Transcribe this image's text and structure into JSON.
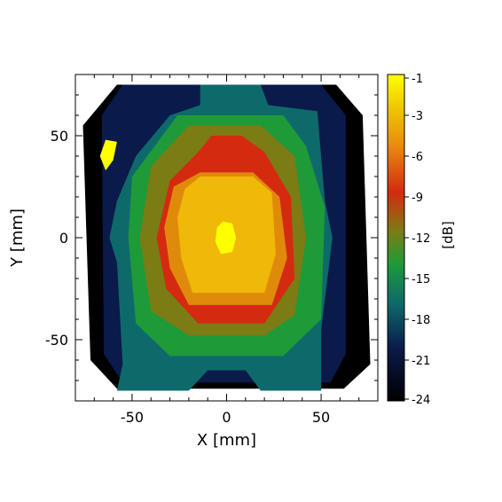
{
  "chart_data": {
    "type": "heatmap",
    "subtype": "filled-contour",
    "xlabel": "X [mm]",
    "ylabel": "Y [mm]",
    "xlim": [
      -80,
      80
    ],
    "ylim": [
      -80,
      80
    ],
    "x_ticks": [
      -50,
      0,
      50
    ],
    "y_ticks": [
      -50,
      0,
      50
    ],
    "colorbar": {
      "label": "[dB]",
      "range": [
        -24,
        0
      ],
      "ticks": [
        -1,
        -3,
        -6,
        -9,
        -12,
        -15,
        -18,
        -21,
        -24
      ],
      "levels": [
        {
          "from": -24,
          "to": -21,
          "color": "#000000"
        },
        {
          "from": -21,
          "to": -18,
          "color": "#0a1a4a"
        },
        {
          "from": -18,
          "to": -15,
          "color": "#0e6a6a"
        },
        {
          "from": -15,
          "to": -12,
          "color": "#1e9a38"
        },
        {
          "from": -12,
          "to": -9,
          "color": "#7c7c14"
        },
        {
          "from": -9,
          "to": -6,
          "color": "#d42a10"
        },
        {
          "from": -6,
          "to": -3,
          "color": "#e08a0c"
        },
        {
          "from": -3,
          "to": -1,
          "color": "#f0b808"
        },
        {
          "from": -1,
          "to": 0,
          "color": "#ffff00"
        }
      ]
    },
    "regions": [
      {
        "level": -22,
        "points": [
          [
            -58,
            75
          ],
          [
            58,
            75
          ],
          [
            72,
            60
          ],
          [
            76,
            -62
          ],
          [
            62,
            -74
          ],
          [
            -58,
            -74
          ],
          [
            -72,
            -60
          ],
          [
            -76,
            55
          ]
        ]
      },
      {
        "level": -19,
        "points": [
          [
            -55,
            75
          ],
          [
            50,
            75
          ],
          [
            63,
            60
          ],
          [
            63,
            -57
          ],
          [
            55,
            -71
          ],
          [
            -55,
            -71
          ],
          [
            -65,
            -57
          ],
          [
            -66,
            60
          ]
        ]
      },
      {
        "level": -16,
        "points": [
          [
            -14,
            75
          ],
          [
            18,
            75
          ],
          [
            22,
            65
          ],
          [
            48,
            62
          ],
          [
            52,
            18
          ],
          [
            56,
            0
          ],
          [
            50,
            -45
          ],
          [
            50,
            -75
          ],
          [
            18,
            -75
          ],
          [
            10,
            -65
          ],
          [
            -10,
            -65
          ],
          [
            -20,
            -75
          ],
          [
            -58,
            -75
          ],
          [
            -55,
            -62
          ],
          [
            -58,
            -12
          ],
          [
            -62,
            0
          ],
          [
            -58,
            18
          ],
          [
            -48,
            40
          ],
          [
            -30,
            60
          ],
          [
            -14,
            65
          ]
        ]
      },
      {
        "level": -13,
        "points": [
          [
            -26,
            60
          ],
          [
            30,
            60
          ],
          [
            42,
            45
          ],
          [
            52,
            15
          ],
          [
            50,
            -40
          ],
          [
            30,
            -58
          ],
          [
            -30,
            -58
          ],
          [
            -48,
            -42
          ],
          [
            -52,
            0
          ],
          [
            -50,
            30
          ]
        ]
      },
      {
        "level": -10,
        "points": [
          [
            -20,
            55
          ],
          [
            18,
            55
          ],
          [
            36,
            40
          ],
          [
            42,
            0
          ],
          [
            36,
            -38
          ],
          [
            20,
            -48
          ],
          [
            -20,
            -48
          ],
          [
            -40,
            -36
          ],
          [
            -46,
            0
          ],
          [
            -40,
            35
          ]
        ]
      },
      {
        "level": -7,
        "points": [
          [
            -8,
            50
          ],
          [
            8,
            50
          ],
          [
            20,
            42
          ],
          [
            34,
            20
          ],
          [
            36,
            -20
          ],
          [
            20,
            -42
          ],
          [
            -15,
            -42
          ],
          [
            -32,
            -25
          ],
          [
            -37,
            0
          ],
          [
            -30,
            28
          ],
          [
            -15,
            42
          ]
        ]
      },
      {
        "level": -4,
        "points": [
          [
            -14,
            32
          ],
          [
            14,
            32
          ],
          [
            28,
            20
          ],
          [
            32,
            -10
          ],
          [
            24,
            -33
          ],
          [
            -20,
            -33
          ],
          [
            -30,
            -15
          ],
          [
            -33,
            5
          ],
          [
            -28,
            25
          ]
        ]
      },
      {
        "level": -2,
        "points": [
          [
            -14,
            30
          ],
          [
            14,
            30
          ],
          [
            24,
            22
          ],
          [
            26,
            -8
          ],
          [
            20,
            -27
          ],
          [
            -18,
            -27
          ],
          [
            -24,
            -10
          ],
          [
            -26,
            10
          ],
          [
            -22,
            24
          ]
        ]
      },
      {
        "level": -1,
        "points": [
          [
            -2,
            8
          ],
          [
            3,
            7
          ],
          [
            5,
            0
          ],
          [
            3,
            -7
          ],
          [
            -3,
            -8
          ],
          [
            -6,
            -2
          ],
          [
            -5,
            5
          ]
        ]
      },
      {
        "level": -1,
        "points": [
          [
            -64,
            48
          ],
          [
            -58,
            47
          ],
          [
            -60,
            38
          ],
          [
            -64,
            33
          ],
          [
            -67,
            40
          ]
        ]
      }
    ]
  }
}
